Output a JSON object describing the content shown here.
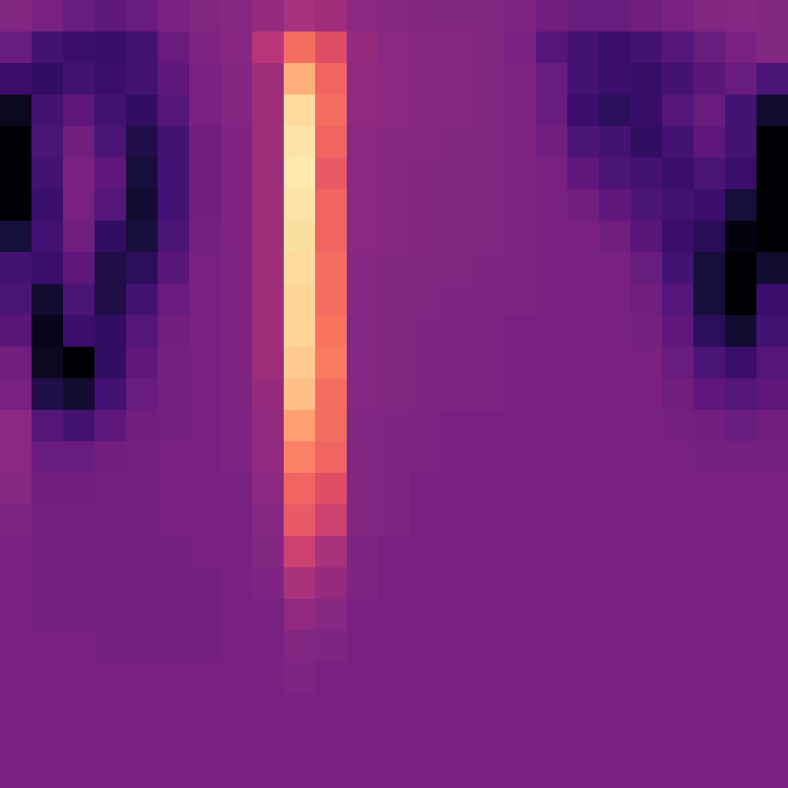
{
  "chart_data": {
    "type": "heatmap",
    "tick_labels": false,
    "zlim": [
      0.1,
      1
    ],
    "z": [
      [
        0.44,
        0.42,
        0.38,
        0.36,
        0.38,
        0.42,
        0.44,
        0.45,
        0.48,
        0.52,
        0.5,
        0.46,
        0.45,
        0.44,
        0.44,
        0.44,
        0.43,
        0.4,
        0.38,
        0.38,
        0.4,
        0.42,
        0.44,
        0.45,
        0.44
      ],
      [
        0.38,
        0.3,
        0.28,
        0.27,
        0.3,
        0.38,
        0.43,
        0.45,
        0.55,
        0.72,
        0.65,
        0.48,
        0.46,
        0.45,
        0.45,
        0.44,
        0.42,
        0.34,
        0.3,
        0.28,
        0.3,
        0.34,
        0.38,
        0.42,
        0.44
      ],
      [
        0.28,
        0.26,
        0.3,
        0.28,
        0.3,
        0.36,
        0.42,
        0.44,
        0.5,
        0.85,
        0.7,
        0.47,
        0.46,
        0.45,
        0.45,
        0.44,
        0.43,
        0.38,
        0.3,
        0.28,
        0.27,
        0.3,
        0.35,
        0.38,
        0.32
      ],
      [
        0.15,
        0.3,
        0.36,
        0.3,
        0.26,
        0.34,
        0.42,
        0.44,
        0.5,
        0.93,
        0.72,
        0.47,
        0.46,
        0.45,
        0.45,
        0.44,
        0.43,
        0.38,
        0.28,
        0.25,
        0.27,
        0.34,
        0.38,
        0.3,
        0.18
      ],
      [
        0.08,
        0.32,
        0.4,
        0.32,
        0.22,
        0.3,
        0.4,
        0.43,
        0.5,
        0.95,
        0.7,
        0.46,
        0.45,
        0.45,
        0.44,
        0.44,
        0.43,
        0.4,
        0.32,
        0.3,
        0.26,
        0.3,
        0.36,
        0.3,
        0.1
      ],
      [
        0.05,
        0.3,
        0.42,
        0.36,
        0.2,
        0.3,
        0.4,
        0.43,
        0.5,
        0.96,
        0.68,
        0.46,
        0.45,
        0.44,
        0.44,
        0.44,
        0.43,
        0.42,
        0.36,
        0.32,
        0.3,
        0.28,
        0.32,
        0.28,
        0.08
      ],
      [
        0.08,
        0.28,
        0.42,
        0.34,
        0.18,
        0.3,
        0.4,
        0.43,
        0.5,
        0.95,
        0.7,
        0.46,
        0.45,
        0.44,
        0.44,
        0.44,
        0.43,
        0.42,
        0.4,
        0.36,
        0.32,
        0.3,
        0.28,
        0.2,
        0.05
      ],
      [
        0.2,
        0.3,
        0.4,
        0.26,
        0.2,
        0.32,
        0.41,
        0.43,
        0.5,
        0.94,
        0.7,
        0.46,
        0.45,
        0.44,
        0.44,
        0.44,
        0.43,
        0.42,
        0.42,
        0.4,
        0.35,
        0.28,
        0.24,
        0.12,
        0.06
      ],
      [
        0.3,
        0.28,
        0.36,
        0.22,
        0.25,
        0.35,
        0.42,
        0.43,
        0.5,
        0.93,
        0.72,
        0.45,
        0.44,
        0.44,
        0.44,
        0.43,
        0.43,
        0.42,
        0.42,
        0.42,
        0.38,
        0.3,
        0.2,
        0.08,
        0.18
      ],
      [
        0.32,
        0.18,
        0.32,
        0.22,
        0.3,
        0.38,
        0.42,
        0.43,
        0.5,
        0.92,
        0.72,
        0.45,
        0.44,
        0.44,
        0.43,
        0.43,
        0.43,
        0.42,
        0.42,
        0.42,
        0.4,
        0.34,
        0.2,
        0.08,
        0.28
      ],
      [
        0.35,
        0.14,
        0.28,
        0.26,
        0.34,
        0.4,
        0.42,
        0.43,
        0.5,
        0.92,
        0.74,
        0.45,
        0.44,
        0.43,
        0.43,
        0.43,
        0.42,
        0.42,
        0.42,
        0.42,
        0.41,
        0.36,
        0.25,
        0.18,
        0.3
      ],
      [
        0.4,
        0.15,
        0.08,
        0.26,
        0.36,
        0.41,
        0.42,
        0.43,
        0.5,
        0.9,
        0.75,
        0.45,
        0.44,
        0.43,
        0.43,
        0.43,
        0.42,
        0.42,
        0.42,
        0.42,
        0.42,
        0.38,
        0.32,
        0.28,
        0.34
      ],
      [
        0.42,
        0.22,
        0.18,
        0.3,
        0.38,
        0.41,
        0.42,
        0.43,
        0.48,
        0.88,
        0.72,
        0.45,
        0.44,
        0.43,
        0.43,
        0.43,
        0.42,
        0.42,
        0.42,
        0.42,
        0.42,
        0.4,
        0.36,
        0.34,
        0.36
      ],
      [
        0.46,
        0.34,
        0.3,
        0.36,
        0.4,
        0.41,
        0.42,
        0.43,
        0.47,
        0.82,
        0.72,
        0.44,
        0.43,
        0.43,
        0.42,
        0.42,
        0.42,
        0.42,
        0.42,
        0.42,
        0.42,
        0.41,
        0.4,
        0.38,
        0.4
      ],
      [
        0.46,
        0.38,
        0.38,
        0.4,
        0.41,
        0.42,
        0.42,
        0.43,
        0.47,
        0.76,
        0.7,
        0.44,
        0.43,
        0.43,
        0.42,
        0.42,
        0.42,
        0.42,
        0.42,
        0.42,
        0.42,
        0.42,
        0.41,
        0.41,
        0.41
      ],
      [
        0.45,
        0.4,
        0.4,
        0.41,
        0.41,
        0.42,
        0.42,
        0.42,
        0.46,
        0.7,
        0.65,
        0.44,
        0.43,
        0.42,
        0.42,
        0.42,
        0.42,
        0.42,
        0.42,
        0.42,
        0.42,
        0.42,
        0.42,
        0.42,
        0.42
      ],
      [
        0.43,
        0.41,
        0.41,
        0.41,
        0.41,
        0.42,
        0.42,
        0.42,
        0.45,
        0.68,
        0.6,
        0.44,
        0.43,
        0.42,
        0.42,
        0.42,
        0.42,
        0.42,
        0.42,
        0.42,
        0.42,
        0.42,
        0.42,
        0.42,
        0.42
      ],
      [
        0.42,
        0.41,
        0.41,
        0.41,
        0.41,
        0.41,
        0.42,
        0.42,
        0.44,
        0.6,
        0.52,
        0.43,
        0.42,
        0.42,
        0.42,
        0.42,
        0.42,
        0.42,
        0.42,
        0.42,
        0.42,
        0.42,
        0.42,
        0.42,
        0.42
      ],
      [
        0.42,
        0.41,
        0.41,
        0.41,
        0.41,
        0.41,
        0.41,
        0.42,
        0.43,
        0.52,
        0.48,
        0.43,
        0.42,
        0.42,
        0.42,
        0.42,
        0.42,
        0.42,
        0.42,
        0.42,
        0.42,
        0.42,
        0.42,
        0.42,
        0.42
      ],
      [
        0.42,
        0.41,
        0.41,
        0.41,
        0.41,
        0.41,
        0.41,
        0.42,
        0.42,
        0.47,
        0.45,
        0.42,
        0.42,
        0.42,
        0.42,
        0.42,
        0.42,
        0.42,
        0.42,
        0.42,
        0.42,
        0.42,
        0.42,
        0.42,
        0.42
      ],
      [
        0.42,
        0.42,
        0.42,
        0.41,
        0.41,
        0.41,
        0.41,
        0.42,
        0.42,
        0.44,
        0.43,
        0.42,
        0.42,
        0.42,
        0.42,
        0.42,
        0.42,
        0.42,
        0.42,
        0.42,
        0.42,
        0.42,
        0.42,
        0.42,
        0.42
      ],
      [
        0.42,
        0.42,
        0.42,
        0.42,
        0.42,
        0.42,
        0.42,
        0.42,
        0.42,
        0.43,
        0.42,
        0.42,
        0.42,
        0.42,
        0.42,
        0.42,
        0.42,
        0.42,
        0.42,
        0.42,
        0.42,
        0.42,
        0.42,
        0.42,
        0.42
      ],
      [
        0.42,
        0.42,
        0.42,
        0.42,
        0.42,
        0.42,
        0.42,
        0.42,
        0.42,
        0.42,
        0.42,
        0.42,
        0.42,
        0.42,
        0.42,
        0.42,
        0.42,
        0.42,
        0.42,
        0.42,
        0.42,
        0.42,
        0.42,
        0.42,
        0.42
      ],
      [
        0.42,
        0.42,
        0.42,
        0.42,
        0.42,
        0.42,
        0.42,
        0.42,
        0.42,
        0.42,
        0.42,
        0.42,
        0.42,
        0.42,
        0.42,
        0.42,
        0.42,
        0.42,
        0.42,
        0.42,
        0.42,
        0.42,
        0.42,
        0.42,
        0.42
      ],
      [
        0.42,
        0.42,
        0.42,
        0.42,
        0.42,
        0.42,
        0.42,
        0.42,
        0.42,
        0.42,
        0.42,
        0.42,
        0.42,
        0.42,
        0.42,
        0.42,
        0.42,
        0.42,
        0.42,
        0.42,
        0.42,
        0.42,
        0.42,
        0.42,
        0.42
      ]
    ]
  }
}
